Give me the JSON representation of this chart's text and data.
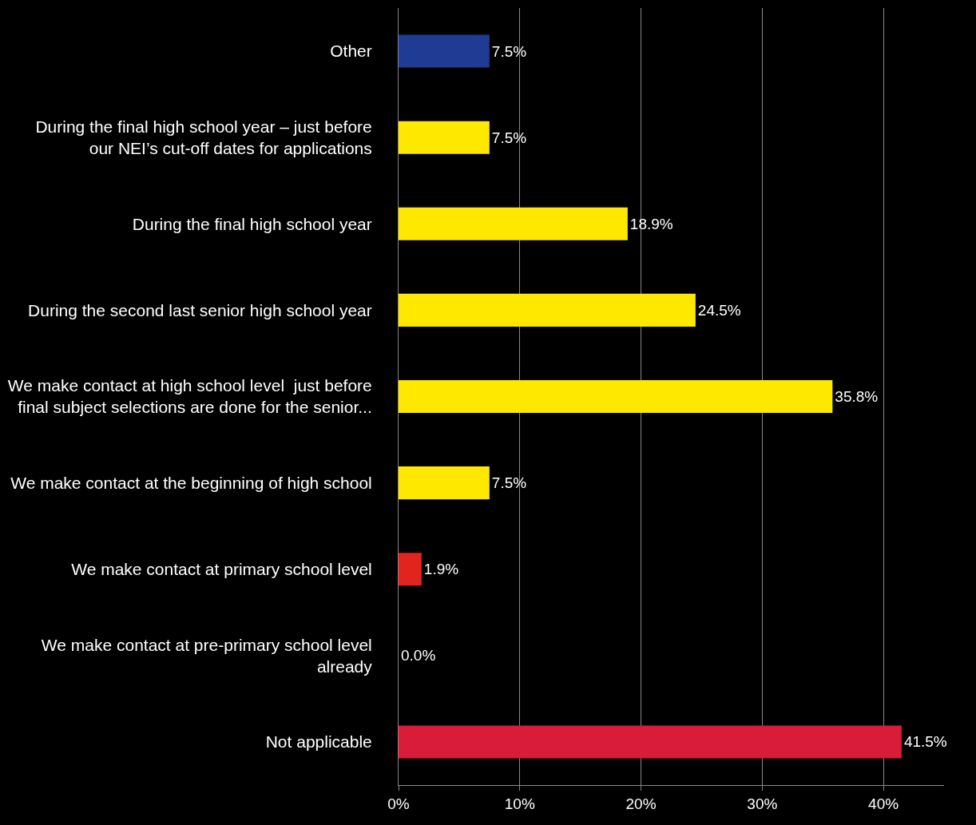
{
  "chart_data": {
    "type": "bar",
    "orientation": "horizontal",
    "categories": [
      "Other",
      "During the final high school year – just before\nour NEI’s cut-off dates for applications",
      "During the final high school year",
      "During the second last senior high school year",
      "We make contact at high school level  just before\nfinal subject selections are done for the senior...",
      "We make contact at the beginning of high school",
      "We make contact at primary school level",
      "We make contact at pre-primary school level\nalready",
      "Not applicable"
    ],
    "values": [
      7.5,
      7.5,
      18.9,
      24.5,
      35.8,
      7.5,
      1.9,
      0.0,
      41.5
    ],
    "colors": [
      "#1f3b94",
      "#ffe800",
      "#ffe800",
      "#ffe800",
      "#ffe800",
      "#ffe800",
      "#e2241f",
      "#e2241f",
      "#d91c3a"
    ],
    "value_labels": [
      "7.5%",
      "7.5%",
      "18.9%",
      "24.5%",
      "35.8%",
      "7.5%",
      "1.9%",
      "0.0%",
      "41.5%"
    ],
    "xlim": [
      0,
      45
    ],
    "xticks": [
      {
        "value": 0,
        "label": "0%"
      },
      {
        "value": 10,
        "label": "10%"
      },
      {
        "value": 20,
        "label": "20%"
      },
      {
        "value": 30,
        "label": "30%"
      },
      {
        "value": 40,
        "label": "40%"
      }
    ],
    "grid": "x",
    "legend": false
  }
}
